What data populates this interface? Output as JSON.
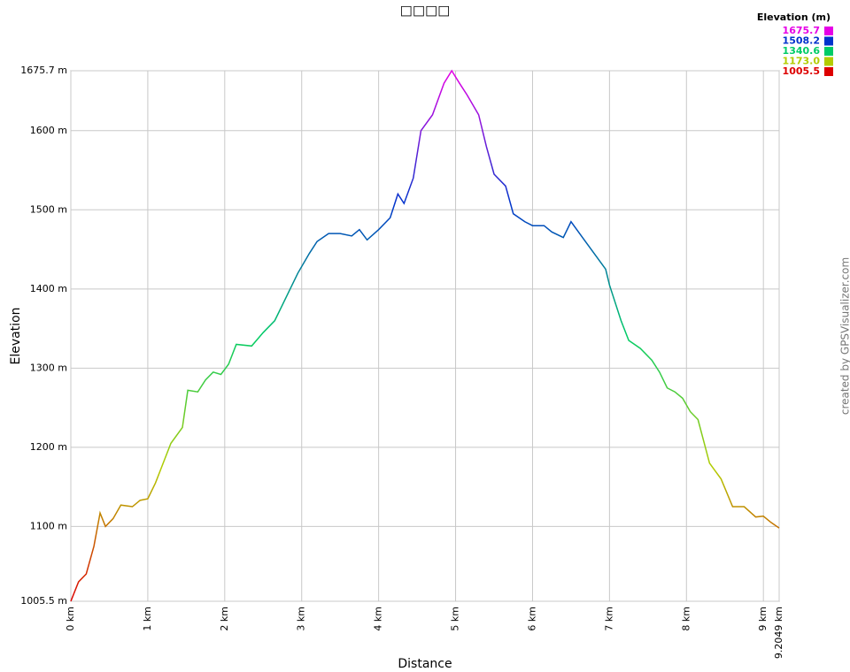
{
  "chart_data": {
    "type": "line",
    "title": "□□□□",
    "x_label": "Distance",
    "y_label": "Elevation",
    "credit": "created by GPSVisualizer.com",
    "legend_title": "Elevation (m)",
    "color_scale": [
      {
        "value": 1675.7,
        "label": "1675.7",
        "color": "#e600e6"
      },
      {
        "value": 1508.2,
        "label": "1508.2",
        "color": "#0033cc"
      },
      {
        "value": 1340.6,
        "label": "1340.6",
        "color": "#00cc66"
      },
      {
        "value": 1173,
        "label": "1173.0",
        "color": "#b3cc00"
      },
      {
        "value": 1005.5,
        "label": "1005.5",
        "color": "#dd0000"
      }
    ],
    "x": [
      0,
      0.1,
      0.2,
      0.3,
      0.38,
      0.45,
      0.55,
      0.65,
      0.8,
      0.9,
      1.0,
      1.1,
      1.2,
      1.3,
      1.45,
      1.52,
      1.65,
      1.75,
      1.85,
      1.95,
      2.05,
      2.15,
      2.35,
      2.5,
      2.65,
      2.8,
      2.95,
      3.1,
      3.2,
      3.35,
      3.5,
      3.65,
      3.75,
      3.85,
      4.0,
      4.15,
      4.25,
      4.33,
      4.45,
      4.55,
      4.7,
      4.85,
      4.95,
      5.05,
      5.15,
      5.3,
      5.4,
      5.5,
      5.65,
      5.75,
      5.9,
      6.0,
      6.15,
      6.25,
      6.4,
      6.5,
      6.65,
      6.8,
      6.95,
      7.0,
      7.15,
      7.25,
      7.4,
      7.55,
      7.65,
      7.75,
      7.85,
      7.95,
      8.05,
      8.15,
      8.3,
      8.45,
      8.6,
      8.75,
      8.9,
      9.0,
      9.1,
      9.2049
    ],
    "values": [
      1005.5,
      1030,
      1040,
      1075,
      1117,
      1100,
      1110,
      1127,
      1125,
      1133,
      1135,
      1155,
      1180,
      1205,
      1225,
      1272,
      1270,
      1285,
      1295,
      1292,
      1305,
      1330,
      1328,
      1345,
      1360,
      1390,
      1420,
      1445,
      1460,
      1470,
      1470,
      1467,
      1475,
      1462,
      1475,
      1490,
      1520,
      1508,
      1540,
      1600,
      1620,
      1660,
      1675.7,
      1660,
      1645,
      1620,
      1580,
      1545,
      1530,
      1495,
      1485,
      1480,
      1480,
      1472,
      1465,
      1485,
      1465,
      1445,
      1425,
      1405,
      1360,
      1335,
      1325,
      1310,
      1295,
      1275,
      1270,
      1262,
      1245,
      1235,
      1180,
      1160,
      1125,
      1125,
      1112,
      1113,
      1105,
      1098
    ],
    "xlim": [
      0,
      9.2049
    ],
    "xticks": [
      {
        "value": 0,
        "label": "0 km"
      },
      {
        "value": 1,
        "label": "1 km"
      },
      {
        "value": 2,
        "label": "2 km"
      },
      {
        "value": 3,
        "label": "3 km"
      },
      {
        "value": 4,
        "label": "4 km"
      },
      {
        "value": 5,
        "label": "5 km"
      },
      {
        "value": 6,
        "label": "6 km"
      },
      {
        "value": 7,
        "label": "7 km"
      },
      {
        "value": 8,
        "label": "8 km"
      },
      {
        "value": 9,
        "label": "9 km"
      },
      {
        "value": 9.2049,
        "label": "9.2049 km"
      }
    ],
    "ylim": [
      1005.5,
      1675.7
    ],
    "yticks": [
      {
        "value": 1005.5,
        "label": "1005.5 m"
      },
      {
        "value": 1100,
        "label": "1100 m"
      },
      {
        "value": 1200,
        "label": "1200 m"
      },
      {
        "value": 1300,
        "label": "1300 m"
      },
      {
        "value": 1400,
        "label": "1400 m"
      },
      {
        "value": 1500,
        "label": "1500 m"
      },
      {
        "value": 1600,
        "label": "1600 m"
      },
      {
        "value": 1675.7,
        "label": "1675.7 m"
      }
    ],
    "grid": true
  }
}
